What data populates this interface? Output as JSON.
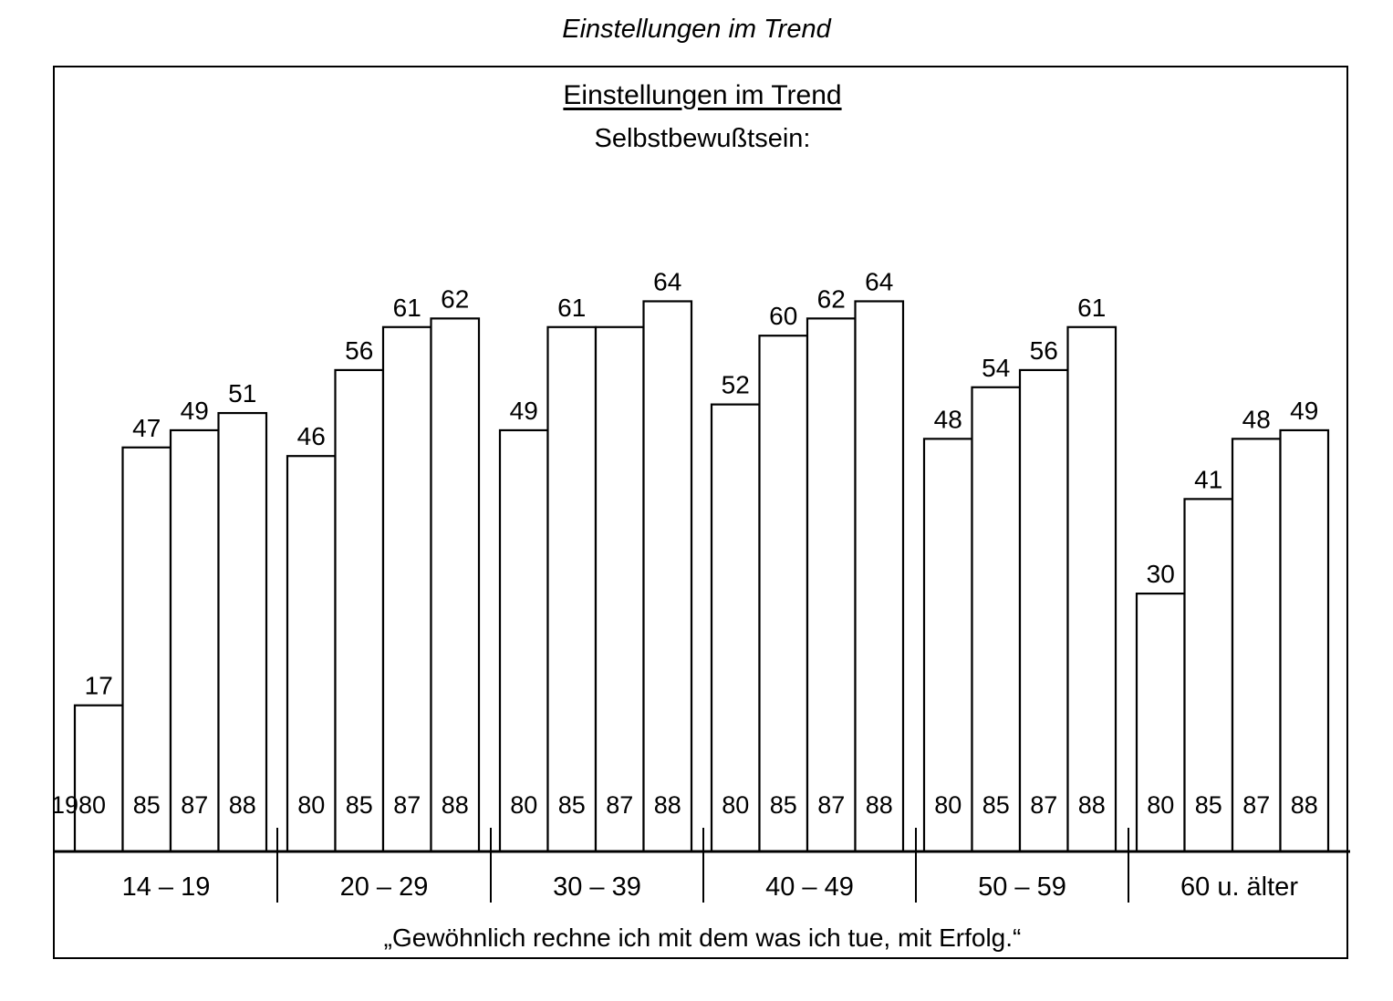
{
  "outer_title": "Einstellungen im Trend",
  "chart_data": {
    "type": "bar",
    "title": "Einstellungen im Trend",
    "subtitle": "Selbstbewußtsein:",
    "caption": "„Gewöhnlich rechne ich mit dem was ich tue, mit Erfolg.“",
    "first_year_label": "1980",
    "groups": [
      {
        "label": "14 – 19",
        "years": [
          "80",
          "85",
          "87",
          "88"
        ],
        "values": [
          17,
          47,
          49,
          51
        ]
      },
      {
        "label": "20 – 29",
        "years": [
          "80",
          "85",
          "87",
          "88"
        ],
        "values": [
          46,
          56,
          61,
          62
        ]
      },
      {
        "label": "30 – 39",
        "years": [
          "80",
          "85",
          "87",
          "88"
        ],
        "values": [
          49,
          61,
          61,
          64
        ]
      },
      {
        "label": "40 – 49",
        "years": [
          "80",
          "85",
          "87",
          "88"
        ],
        "values": [
          52,
          60,
          62,
          64
        ]
      },
      {
        "label": "50 – 59",
        "years": [
          "80",
          "85",
          "87",
          "88"
        ],
        "values": [
          48,
          54,
          56,
          61
        ]
      },
      {
        "label": "60 u. älter",
        "years": [
          "80",
          "85",
          "87",
          "88"
        ],
        "values": [
          30,
          41,
          48,
          49
        ]
      }
    ],
    "value_labels": [
      [
        "17",
        "47",
        "49",
        "51"
      ],
      [
        "46",
        "56",
        "61",
        "62"
      ],
      [
        "49",
        "61",
        "",
        "64"
      ],
      [
        "52",
        "60",
        "62",
        "64"
      ],
      [
        "48",
        "54",
        "56",
        "61"
      ],
      [
        "30",
        "41",
        "48",
        "49"
      ]
    ],
    "ylim": [
      0,
      70
    ],
    "grid": false,
    "legend": "none"
  }
}
